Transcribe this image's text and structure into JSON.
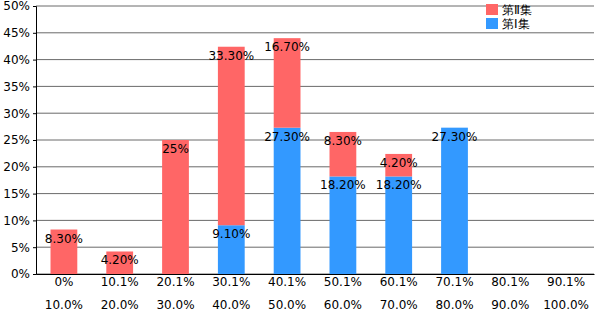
{
  "chart_data": {
    "type": "bar",
    "stacked": true,
    "data_labels": true,
    "grid": true,
    "legend": "upper right",
    "categories": [
      "0%\n10.0%",
      "10.1%\n20.0%",
      "20.1%\n30.0%",
      "30.1%\n40.0%",
      "40.1%\n50.0%",
      "50.1%\n60.0%",
      "60.1%\n70.0%",
      "70.1%\n80.0%",
      "80.1%\n90.0%",
      "90.1%\n100.0%"
    ],
    "series": [
      {
        "name": "第Ⅰ集",
        "color": "#3399ff",
        "values": [
          0,
          0,
          0,
          9.1,
          27.3,
          18.2,
          18.2,
          27.3,
          0,
          0
        ],
        "value_labels": [
          null,
          null,
          null,
          "9.10%",
          "27.30%",
          "18.20%",
          "18.20%",
          "27.30%",
          null,
          null
        ]
      },
      {
        "name": "第Ⅱ集",
        "color": "#ff6666",
        "values": [
          8.3,
          4.2,
          25,
          33.3,
          16.7,
          8.3,
          4.2,
          0,
          0,
          0
        ],
        "value_labels": [
          "8.30%",
          "4.20%",
          "25%",
          "33.30%",
          "16.70%",
          "8.30%",
          "4.20%",
          null,
          null,
          null
        ]
      }
    ],
    "ylim": [
      0,
      50
    ],
    "yticks": [
      {
        "value": 0,
        "label": "0%"
      },
      {
        "value": 5,
        "label": "5%"
      },
      {
        "value": 10,
        "label": "10%"
      },
      {
        "value": 15,
        "label": "15%"
      },
      {
        "value": 20,
        "label": "20%"
      },
      {
        "value": 25,
        "label": "25%"
      },
      {
        "value": 30,
        "label": "30%"
      },
      {
        "value": 35,
        "label": "35%"
      },
      {
        "value": 40,
        "label": "40%"
      },
      {
        "value": 45,
        "label": "45%"
      },
      {
        "value": 50,
        "label": "50%"
      }
    ]
  }
}
